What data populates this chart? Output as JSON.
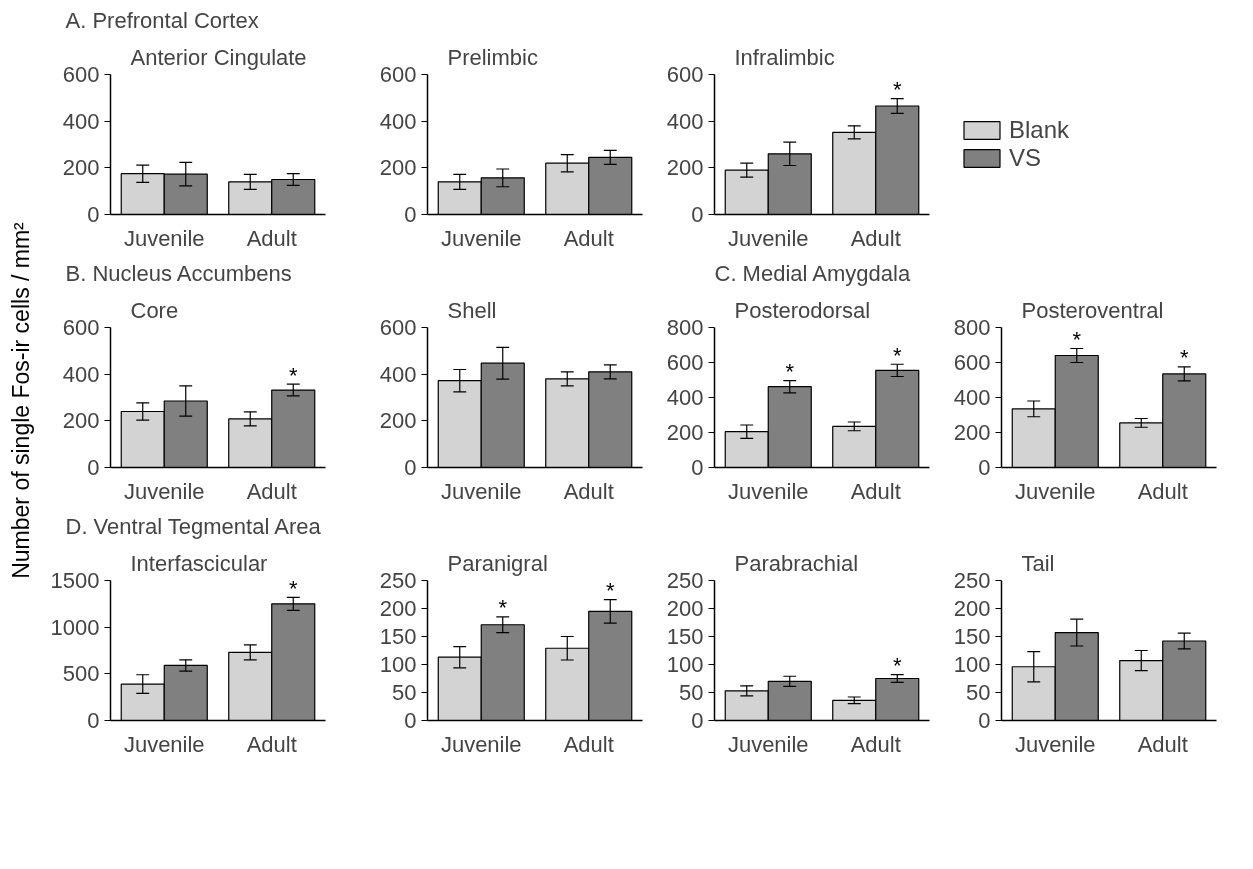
{
  "chart_data": [
    {
      "type": "bar",
      "title": "A. Prefrontal Cortex",
      "subtitle": "Anterior Cingulate",
      "categories": [
        "Juvenile",
        "Adult"
      ],
      "series": [
        {
          "color": "#d3d3d3",
          "values": [
            175,
            140
          ],
          "errors": [
            37,
            32
          ]
        },
        {
          "color": "#808080",
          "values": [
            173,
            150
          ],
          "errors": [
            50,
            25
          ]
        }
      ],
      "ylim": [
        0,
        600
      ],
      "yticks": [
        0,
        200,
        400,
        600
      ],
      "grid": false,
      "legend": false
    },
    {
      "type": "bar",
      "subtitle": "Prelimbic",
      "categories": [
        "Juvenile",
        "Adult"
      ],
      "series": [
        {
          "color": "#d3d3d3",
          "values": [
            140,
            220
          ],
          "errors": [
            32,
            37
          ]
        },
        {
          "color": "#808080",
          "values": [
            157,
            245
          ],
          "errors": [
            38,
            30
          ]
        }
      ],
      "ylim": [
        0,
        600
      ],
      "yticks": [
        0,
        200,
        400,
        600
      ],
      "grid": false,
      "legend": false
    },
    {
      "type": "bar",
      "subtitle": "Infralimbic",
      "categories": [
        "Juvenile",
        "Adult"
      ],
      "series": [
        {
          "name": "Blank",
          "color": "#d3d3d3",
          "values": [
            190,
            352
          ],
          "errors": [
            30,
            28
          ]
        },
        {
          "name": "VS",
          "color": "#808080",
          "values": [
            260,
            465
          ],
          "errors": [
            50,
            32
          ]
        }
      ],
      "ylim": [
        0,
        600
      ],
      "yticks": [
        0,
        200,
        400,
        600
      ],
      "grid": false,
      "legend": "right",
      "annotations": [
        {
          "text": "*",
          "x": "Adult",
          "y": 465
        }
      ]
    },
    {
      "type": "bar",
      "title": "B. Nucleus Accumbens",
      "subtitle": "Core",
      "ylabel": "Number of single Fos-ir cells / mm²",
      "categories": [
        "Juvenile",
        "Adult"
      ],
      "series": [
        {
          "color": "#d3d3d3",
          "values": [
            240,
            208
          ],
          "errors": [
            37,
            30
          ]
        },
        {
          "color": "#808080",
          "values": [
            285,
            332
          ],
          "errors": [
            65,
            25
          ]
        }
      ],
      "ylim": [
        0,
        600
      ],
      "yticks": [
        0,
        200,
        400,
        600
      ],
      "grid": false,
      "legend": false,
      "annotations": [
        {
          "text": "*",
          "x": "Adult",
          "y": 332
        }
      ]
    },
    {
      "type": "bar",
      "subtitle": "Shell",
      "categories": [
        "Juvenile",
        "Adult"
      ],
      "series": [
        {
          "color": "#d3d3d3",
          "values": [
            372,
            380
          ],
          "errors": [
            48,
            30
          ]
        },
        {
          "color": "#808080",
          "values": [
            447,
            410
          ],
          "errors": [
            68,
            30
          ]
        }
      ],
      "ylim": [
        0,
        600
      ],
      "yticks": [
        0,
        200,
        400,
        600
      ],
      "grid": false,
      "legend": false
    },
    {
      "type": "bar",
      "title": "C. Medial Amygdala",
      "subtitle": "Posterodorsal",
      "categories": [
        "Juvenile",
        "Adult"
      ],
      "series": [
        {
          "color": "#d3d3d3",
          "values": [
            205,
            235
          ],
          "errors": [
            38,
            25
          ]
        },
        {
          "color": "#808080",
          "values": [
            462,
            555
          ],
          "errors": [
            35,
            35
          ]
        }
      ],
      "ylim": [
        0,
        800
      ],
      "yticks": [
        0,
        200,
        400,
        600,
        800
      ],
      "grid": false,
      "legend": false,
      "annotations": [
        {
          "text": "*",
          "x": "Juvenile",
          "y": 462
        },
        {
          "text": "*",
          "x": "Adult",
          "y": 555
        }
      ]
    },
    {
      "type": "bar",
      "subtitle": "Posteroventral",
      "categories": [
        "Juvenile",
        "Adult"
      ],
      "series": [
        {
          "color": "#d3d3d3",
          "values": [
            335,
            255
          ],
          "errors": [
            45,
            25
          ]
        },
        {
          "color": "#808080",
          "values": [
            640,
            535
          ],
          "errors": [
            40,
            40
          ]
        }
      ],
      "ylim": [
        0,
        800
      ],
      "yticks": [
        0,
        200,
        400,
        600,
        800
      ],
      "grid": false,
      "legend": false,
      "annotations": [
        {
          "text": "*",
          "x": "Juvenile",
          "y": 640
        },
        {
          "text": "*",
          "x": "Adult",
          "y": 535
        }
      ]
    },
    {
      "type": "bar",
      "title": "D. Ventral Tegmental Area",
      "subtitle": "Interfascicular",
      "categories": [
        "Juvenile",
        "Adult"
      ],
      "series": [
        {
          "color": "#d3d3d3",
          "values": [
            390,
            730
          ],
          "errors": [
            100,
            80
          ]
        },
        {
          "color": "#808080",
          "values": [
            590,
            1250
          ],
          "errors": [
            60,
            70
          ]
        }
      ],
      "ylim": [
        0,
        1500
      ],
      "yticks": [
        0,
        500,
        1000,
        1500
      ],
      "grid": false,
      "legend": false,
      "annotations": [
        {
          "text": "*",
          "x": "Adult",
          "y": 1250
        }
      ]
    },
    {
      "type": "bar",
      "subtitle": "Paranigral",
      "categories": [
        "Juvenile",
        "Adult"
      ],
      "series": [
        {
          "color": "#d3d3d3",
          "values": [
            113,
            129
          ],
          "errors": [
            19,
            21
          ]
        },
        {
          "color": "#808080",
          "values": [
            171,
            195
          ],
          "errors": [
            14,
            21
          ]
        }
      ],
      "ylim": [
        0,
        250
      ],
      "yticks": [
        0,
        50,
        100,
        150,
        200,
        250
      ],
      "grid": false,
      "legend": false,
      "annotations": [
        {
          "text": "*",
          "x": "Juvenile",
          "y": 171
        },
        {
          "text": "*",
          "x": "Adult",
          "y": 195
        }
      ]
    },
    {
      "type": "bar",
      "subtitle": "Parabrachial",
      "categories": [
        "Juvenile",
        "Adult"
      ],
      "series": [
        {
          "color": "#d3d3d3",
          "values": [
            53,
            36
          ],
          "errors": [
            9,
            6
          ]
        },
        {
          "color": "#808080",
          "values": [
            70,
            75
          ],
          "errors": [
            9,
            7
          ]
        }
      ],
      "ylim": [
        0,
        250
      ],
      "yticks": [
        0,
        50,
        100,
        150,
        200,
        250
      ],
      "grid": false,
      "legend": false,
      "annotations": [
        {
          "text": "*",
          "x": "Adult",
          "y": 75
        }
      ]
    },
    {
      "type": "bar",
      "subtitle": "Tail",
      "categories": [
        "Juvenile",
        "Adult"
      ],
      "series": [
        {
          "color": "#d3d3d3",
          "values": [
            96,
            107
          ],
          "errors": [
            27,
            18
          ]
        },
        {
          "color": "#808080",
          "values": [
            157,
            142
          ],
          "errors": [
            24,
            14
          ]
        }
      ],
      "ylim": [
        0,
        250
      ],
      "yticks": [
        0,
        50,
        100,
        150,
        200,
        250
      ],
      "grid": false,
      "legend": false
    }
  ]
}
